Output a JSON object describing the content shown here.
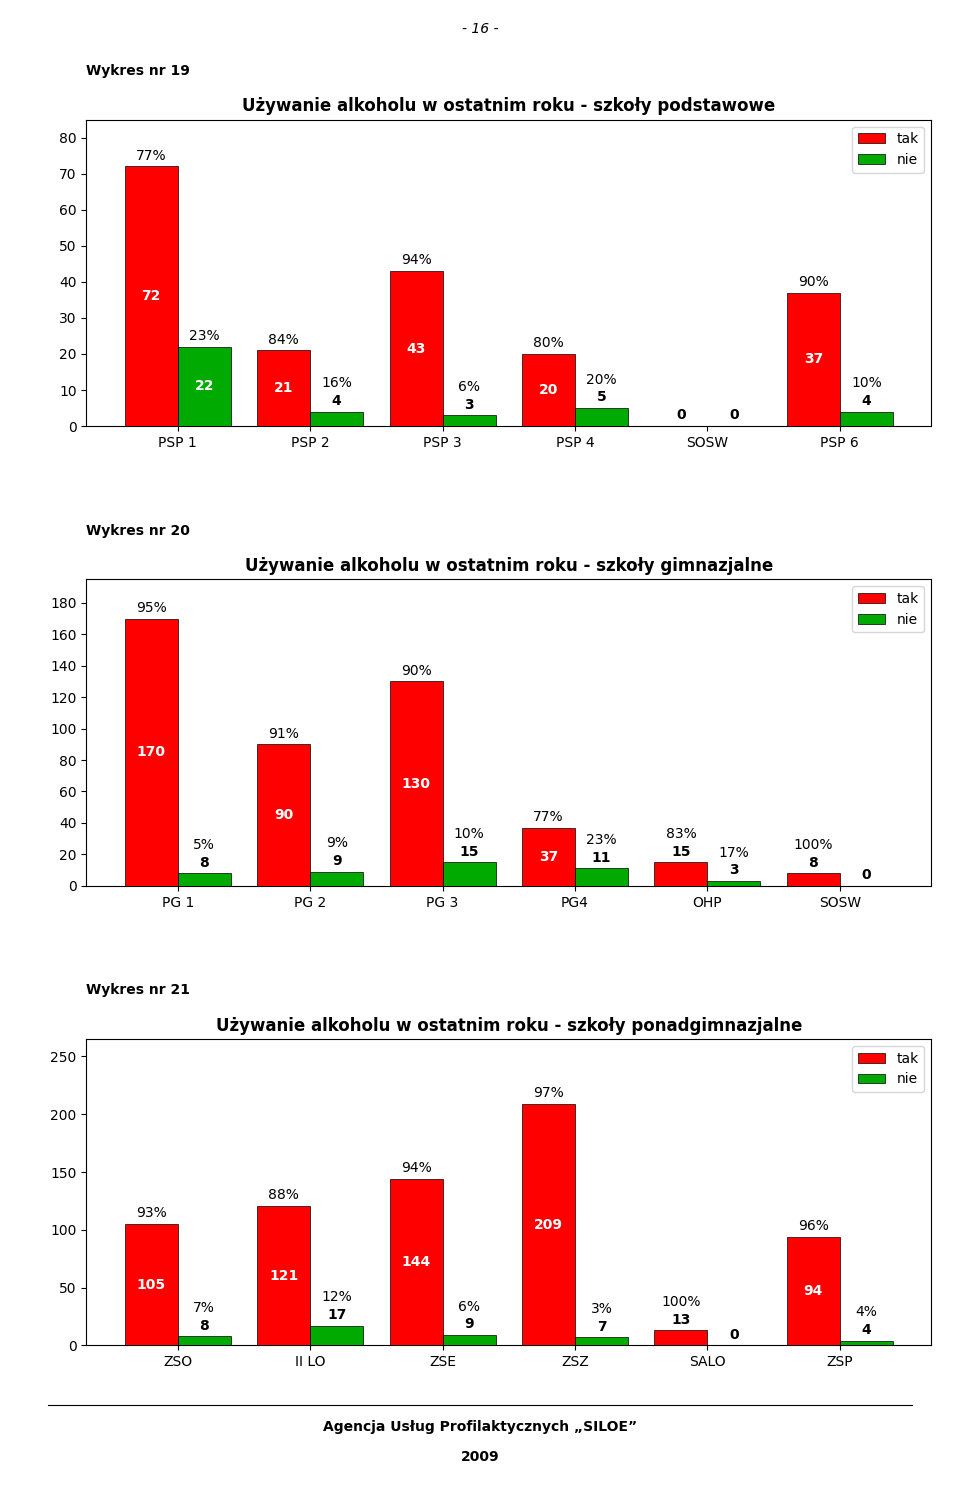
{
  "chart_data": [
    {
      "type": "bar",
      "title": "Używanie alkoholu w ostatnim roku - szkoły podstawowe",
      "annotations": [
        "Wykres nr 19"
      ],
      "categories": [
        "PSP 1",
        "PSP 2",
        "PSP 3",
        "PSP 4",
        "SOSW",
        "PSP 6"
      ],
      "series": [
        {
          "name": "tak",
          "color": "#FF0000",
          "values": [
            72,
            21,
            43,
            20,
            0,
            37
          ],
          "percent_labels": [
            "77%",
            "84%",
            "94%",
            "80%",
            null,
            "90%"
          ]
        },
        {
          "name": "nie",
          "color": "#00AA00",
          "values": [
            22,
            4,
            3,
            5,
            0,
            4
          ],
          "percent_labels": [
            "23%",
            "16%",
            "6%",
            "20%",
            null,
            "10%"
          ]
        }
      ],
      "ylim": [
        0,
        85
      ],
      "yticks": [
        0,
        10,
        20,
        30,
        40,
        50,
        60,
        70,
        80
      ],
      "data_labels": true,
      "legend": "upper right"
    },
    {
      "type": "bar",
      "title": "Używanie alkoholu w ostatnim roku - szkoły gimnazjalne",
      "annotations": [
        "Wykres nr 20"
      ],
      "categories": [
        "PG 1",
        "PG 2",
        "PG 3",
        "PG4",
        "OHP",
        "SOSW"
      ],
      "series": [
        {
          "name": "tak",
          "color": "#FF0000",
          "values": [
            170,
            90,
            130,
            37,
            15,
            8
          ],
          "percent_labels": [
            "95%",
            "91%",
            "90%",
            "77%",
            "83%",
            "100%"
          ]
        },
        {
          "name": "nie",
          "color": "#00AA00",
          "values": [
            8,
            9,
            15,
            11,
            3,
            0
          ],
          "percent_labels": [
            "5%",
            "9%",
            "10%",
            "23%",
            "17%",
            null
          ]
        }
      ],
      "ylim": [
        0,
        195
      ],
      "yticks": [
        0,
        20,
        40,
        60,
        80,
        100,
        120,
        140,
        160,
        180
      ],
      "data_labels": true,
      "legend": "upper right"
    },
    {
      "type": "bar",
      "title": "Używanie alkoholu w ostatnim roku - szkoły ponadgimnazjalne",
      "annotations": [
        "Wykres nr 21"
      ],
      "categories": [
        "ZSO",
        "II LO",
        "ZSE",
        "ZSZ",
        "SALO",
        "ZSP"
      ],
      "series": [
        {
          "name": "tak",
          "color": "#FF0000",
          "values": [
            105,
            121,
            144,
            209,
            13,
            94
          ],
          "percent_labels": [
            "93%",
            "88%",
            "94%",
            "97%",
            "100%",
            "96%"
          ]
        },
        {
          "name": "nie",
          "color": "#00AA00",
          "values": [
            8,
            17,
            9,
            7,
            0,
            4
          ],
          "percent_labels": [
            "7%",
            "12%",
            "6%",
            "3%",
            null,
            "4%"
          ]
        }
      ],
      "ylim": [
        0,
        265
      ],
      "yticks": [
        0,
        50,
        100,
        150,
        200,
        250
      ],
      "data_labels": true,
      "legend": "upper right"
    }
  ],
  "annotations": [
    "- 16 -",
    "Agencja Usług Profilaktycznych „SILOE”",
    "2009"
  ]
}
